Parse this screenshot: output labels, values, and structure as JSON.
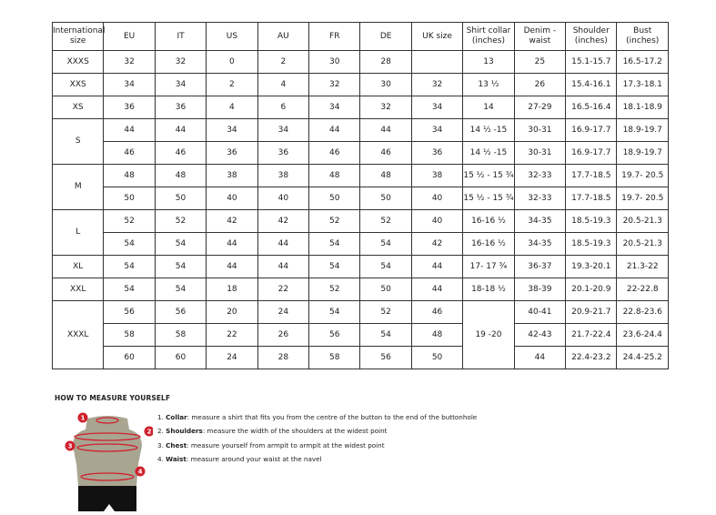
{
  "table": {
    "headers": [
      "International size",
      "EU",
      "IT",
      "US",
      "AU",
      "FR",
      "DE",
      "UK size",
      "Shirt collar (inches)",
      "Denim - waist",
      "Shoulder (inches)",
      "Bust (inches)"
    ],
    "groups": [
      {
        "size": "XXXS",
        "rows": [
          [
            "32",
            "32",
            "0",
            "2",
            "30",
            "28",
            "",
            "13",
            "25",
            "15.1-15.7",
            "16.5-17.2"
          ]
        ]
      },
      {
        "size": "XXS",
        "rows": [
          [
            "34",
            "34",
            "2",
            "4",
            "32",
            "30",
            "32",
            "13 ½",
            "26",
            "15.4-16.1",
            "17.3-18.1"
          ]
        ]
      },
      {
        "size": "XS",
        "rows": [
          [
            "36",
            "36",
            "4",
            "6",
            "34",
            "32",
            "34",
            "14",
            "27-29",
            "16.5-16.4",
            "18.1-18.9"
          ]
        ]
      },
      {
        "size": "S",
        "rows": [
          [
            "44",
            "44",
            "34",
            "34",
            "44",
            "44",
            "34",
            "14 ½ -15",
            "30-31",
            "16.9-17.7",
            "18.9-19.7"
          ],
          [
            "46",
            "46",
            "36",
            "36",
            "46",
            "46",
            "36",
            "14 ½ -15",
            "30-31",
            "16.9-17.7",
            "18.9-19.7"
          ]
        ]
      },
      {
        "size": "M",
        "rows": [
          [
            "48",
            "48",
            "38",
            "38",
            "48",
            "48",
            "38",
            "15 ½ - 15 ¾",
            "32-33",
            "17.7-18.5",
            "19.7- 20.5"
          ],
          [
            "50",
            "50",
            "40",
            "40",
            "50",
            "50",
            "40",
            "15 ½ - 15 ¾",
            "32-33",
            "17.7-18.5",
            "19.7- 20.5"
          ]
        ]
      },
      {
        "size": "L",
        "rows": [
          [
            "52",
            "52",
            "42",
            "42",
            "52",
            "52",
            "40",
            "16-16 ½",
            "34-35",
            "18.5-19.3",
            "20.5-21.3"
          ],
          [
            "54",
            "54",
            "44",
            "44",
            "54",
            "54",
            "42",
            "16-16 ½",
            "34-35",
            "18.5-19.3",
            "20.5-21.3"
          ]
        ]
      },
      {
        "size": "XL",
        "rows": [
          [
            "54",
            "54",
            "44",
            "44",
            "54",
            "54",
            "44",
            "17- 17 ¾",
            "36-37",
            "19.3-20.1",
            "21.3-22"
          ]
        ]
      },
      {
        "size": "XXL",
        "rows": [
          [
            "54",
            "54",
            "18",
            "22",
            "52",
            "50",
            "44",
            "18-18 ½",
            "38-39",
            "20.1-20.9",
            "22-22.8"
          ]
        ]
      },
      {
        "size": "XXXL",
        "shared_collar": "19 -20",
        "rows": [
          [
            "56",
            "56",
            "20",
            "24",
            "54",
            "52",
            "46",
            "",
            "40-41",
            "20.9-21.7",
            "22.8-23.6"
          ],
          [
            "58",
            "58",
            "22",
            "26",
            "56",
            "54",
            "48",
            "",
            "42-43",
            "21.7-22.4",
            "23.6-24.4"
          ],
          [
            "60",
            "60",
            "24",
            "28",
            "58",
            "56",
            "50",
            "",
            "44",
            "22.4-23.2",
            "24.4-25.2"
          ]
        ]
      }
    ]
  },
  "guide": {
    "title": "HOW TO MEASURE YOURSELF",
    "steps": [
      {
        "num": "1.",
        "term": "Collar",
        "text": ": measure a shirt that fits you from the centre of the button to the end of the buttonhole"
      },
      {
        "num": "2.",
        "term": "Shoulders",
        "text": ": measure the width of the shoulders at the widest point"
      },
      {
        "num": "3.",
        "term": "Chest",
        "text": ": measure yourself from armpit to armpit at the widest point"
      },
      {
        "num": "4.",
        "term": "Waist",
        "text": ": measure around your waist at the navel"
      }
    ],
    "markers": [
      "1",
      "2",
      "3",
      "4"
    ],
    "accent_color": "#d0202e",
    "torso_color": "#a8a591"
  }
}
